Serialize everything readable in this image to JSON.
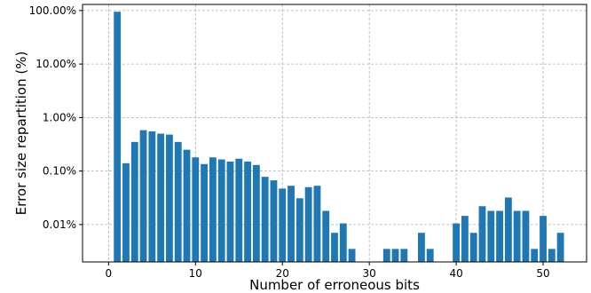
{
  "chart_data": {
    "type": "bar",
    "xlabel": "Number of erroneous bits",
    "ylabel": "Error size repartition (%)",
    "y_scale": "log",
    "xlim": [
      -3,
      55
    ],
    "ylim": [
      0.002,
      130
    ],
    "grid": true,
    "bar_color": "#1f77b4",
    "x_ticks": [
      0,
      10,
      20,
      30,
      40,
      50
    ],
    "y_ticks": [
      0.01,
      0.1,
      1,
      10,
      100
    ],
    "y_tick_labels": [
      "0.01%",
      "0.10%",
      "1.00%",
      "10.00%",
      "100.00%"
    ],
    "x": [
      1,
      2,
      3,
      4,
      5,
      6,
      7,
      8,
      9,
      10,
      11,
      12,
      13,
      14,
      15,
      16,
      17,
      18,
      19,
      20,
      21,
      22,
      23,
      24,
      25,
      26,
      27,
      28,
      32,
      33,
      34,
      36,
      37,
      40,
      41,
      42,
      43,
      44,
      45,
      46,
      47,
      48,
      49,
      50,
      51,
      52
    ],
    "values": [
      95,
      0.14,
      0.35,
      0.58,
      0.55,
      0.5,
      0.48,
      0.35,
      0.25,
      0.18,
      0.135,
      0.18,
      0.165,
      0.15,
      0.17,
      0.15,
      0.13,
      0.078,
      0.067,
      0.047,
      0.053,
      0.031,
      0.05,
      0.053,
      0.018,
      0.007,
      0.0105,
      0.0035,
      0.0035,
      0.0035,
      0.0035,
      0.007,
      0.0035,
      0.0105,
      0.0145,
      0.007,
      0.022,
      0.018,
      0.018,
      0.032,
      0.018,
      0.018,
      0.0035,
      0.0145,
      0.0035,
      0.007
    ]
  }
}
